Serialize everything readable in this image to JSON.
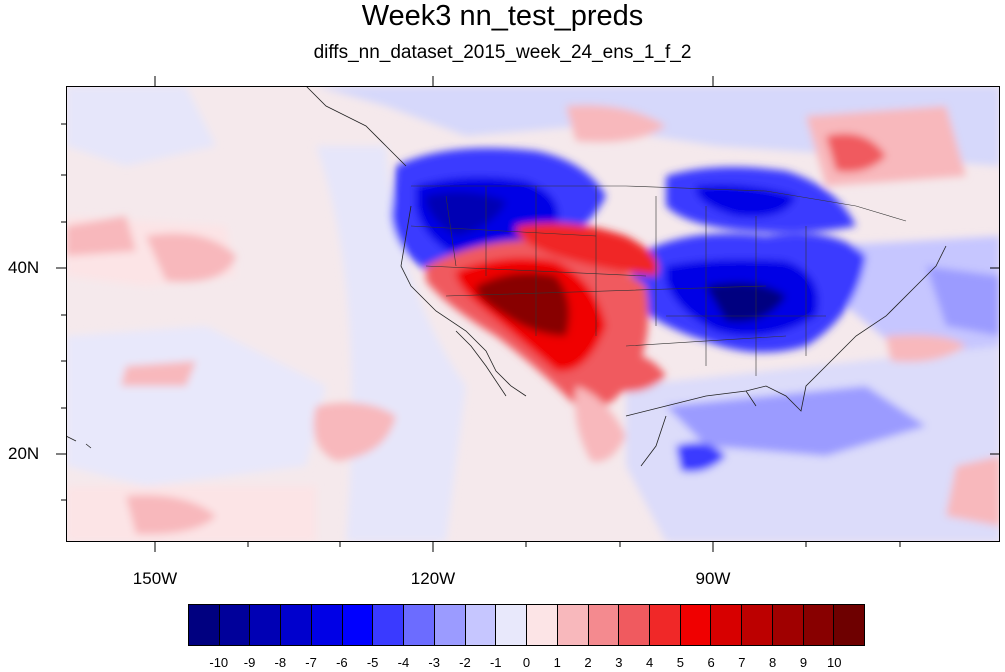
{
  "title": "Week3 nn_test_preds",
  "subtitle": "diffs_nn_dataset_2015_week_24_ens_1_f_2",
  "map": {
    "projection": "equidistant-cylindrical",
    "lon_range": [
      -159.3,
      -60.0
    ],
    "lat_range": [
      11.5,
      60.0
    ],
    "lat_labels": [
      {
        "value": 40,
        "text": "40N"
      },
      {
        "value": 20,
        "text": "20N"
      }
    ],
    "lon_labels": [
      {
        "value": -150,
        "text": "150W"
      },
      {
        "value": -120,
        "text": "120W"
      },
      {
        "value": -90,
        "text": "90W"
      }
    ],
    "overlays": [
      "coastlines",
      "us-state-boundaries",
      "country-boundaries"
    ],
    "field_description": "temperature difference anomalies; warm anomalies over southwestern US/northern Mexico, cool anomalies over northwestern US and southeastern/central US"
  },
  "colorbar": {
    "levels": [
      "-10",
      "-9",
      "-8",
      "-7",
      "-6",
      "-5",
      "-4",
      "-3",
      "-2",
      "-1",
      "0",
      "1",
      "2",
      "3",
      "4",
      "5",
      "6",
      "7",
      "8",
      "9",
      "10"
    ],
    "colors": [
      "#000080",
      "#00009a",
      "#0000b4",
      "#0000cd",
      "#0000e6",
      "#0000ff",
      "#3a3aff",
      "#6c6cff",
      "#9b9bff",
      "#c6c6ff",
      "#e8e8fb",
      "#fce4e6",
      "#f8b8bc",
      "#f48a8f",
      "#f05a5f",
      "#f02828",
      "#f00000",
      "#d70000",
      "#bc0000",
      "#a00000",
      "#880000",
      "#6e0000"
    ]
  }
}
